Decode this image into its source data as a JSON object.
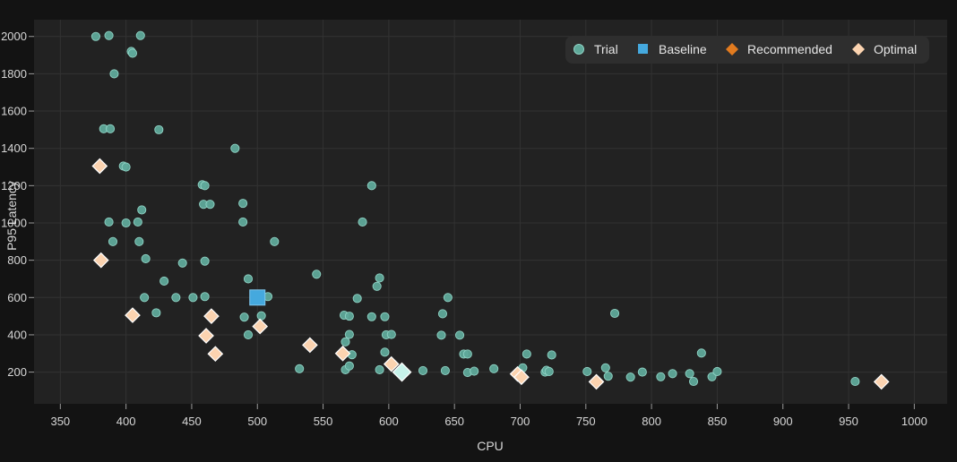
{
  "chart_data": {
    "type": "scatter",
    "title": "",
    "xlabel": "CPU",
    "ylabel": "P95 Latency",
    "xlim": [
      330,
      1025
    ],
    "ylim": [
      30,
      2090
    ],
    "xticks": [
      350,
      400,
      450,
      500,
      550,
      600,
      650,
      700,
      750,
      800,
      850,
      900,
      950,
      1000
    ],
    "yticks": [
      200,
      400,
      600,
      800,
      1000,
      1200,
      1400,
      1600,
      1800,
      2000
    ],
    "grid": true,
    "legend_position": "top-right",
    "colors": {
      "Trial": "#5fa99a",
      "Baseline": "#45a9de",
      "Recommended": "#e27b1f",
      "Optimal": "#fbd3b0",
      "Selected": "#c6f2ea"
    },
    "series": [
      {
        "name": "Trial",
        "marker": "circle",
        "points": [
          [
            377,
            2000
          ],
          [
            387,
            2005
          ],
          [
            411,
            2005
          ],
          [
            404,
            1920
          ],
          [
            405,
            1910
          ],
          [
            391,
            1800
          ],
          [
            383,
            1505
          ],
          [
            388,
            1505
          ],
          [
            425,
            1500
          ],
          [
            398,
            1305
          ],
          [
            400,
            1300
          ],
          [
            483,
            1400
          ],
          [
            587,
            1200
          ],
          [
            458,
            1205
          ],
          [
            460,
            1200
          ],
          [
            489,
            1105
          ],
          [
            459,
            1100
          ],
          [
            464,
            1100
          ],
          [
            412,
            1070
          ],
          [
            387,
            1005
          ],
          [
            400,
            1000
          ],
          [
            409,
            1005
          ],
          [
            489,
            1005
          ],
          [
            580,
            1005
          ],
          [
            390,
            900
          ],
          [
            410,
            900
          ],
          [
            513,
            900
          ],
          [
            415,
            808
          ],
          [
            443,
            785
          ],
          [
            460,
            795
          ],
          [
            545,
            725
          ],
          [
            593,
            705
          ],
          [
            429,
            688
          ],
          [
            493,
            700
          ],
          [
            591,
            660
          ],
          [
            414,
            600
          ],
          [
            438,
            600
          ],
          [
            451,
            600
          ],
          [
            460,
            605
          ],
          [
            508,
            605
          ],
          [
            576,
            595
          ],
          [
            645,
            600
          ],
          [
            423,
            518
          ],
          [
            490,
            495
          ],
          [
            503,
            502
          ],
          [
            566,
            505
          ],
          [
            570,
            500
          ],
          [
            587,
            497
          ],
          [
            597,
            497
          ],
          [
            641,
            513
          ],
          [
            772,
            515
          ],
          [
            493,
            400
          ],
          [
            570,
            402
          ],
          [
            598,
            400
          ],
          [
            602,
            402
          ],
          [
            640,
            398
          ],
          [
            654,
            398
          ],
          [
            567,
            362
          ],
          [
            597,
            307
          ],
          [
            572,
            293
          ],
          [
            657,
            297
          ],
          [
            660,
            297
          ],
          [
            705,
            297
          ],
          [
            724,
            292
          ],
          [
            838,
            302
          ],
          [
            532,
            218
          ],
          [
            567,
            213
          ],
          [
            570,
            233
          ],
          [
            593,
            213
          ],
          [
            626,
            208
          ],
          [
            643,
            208
          ],
          [
            660,
            198
          ],
          [
            665,
            205
          ],
          [
            680,
            218
          ],
          [
            702,
            223
          ],
          [
            719,
            200
          ],
          [
            720,
            210
          ],
          [
            722,
            203
          ],
          [
            751,
            203
          ],
          [
            765,
            223
          ],
          [
            767,
            178
          ],
          [
            784,
            173
          ],
          [
            793,
            200
          ],
          [
            807,
            175
          ],
          [
            816,
            192
          ],
          [
            829,
            192
          ],
          [
            832,
            150
          ],
          [
            846,
            175
          ],
          [
            850,
            203
          ],
          [
            955,
            150
          ]
        ]
      },
      {
        "name": "Baseline",
        "marker": "square",
        "points": [
          [
            500,
            600
          ]
        ]
      },
      {
        "name": "Recommended",
        "marker": "diamond",
        "points": []
      },
      {
        "name": "Optimal",
        "marker": "diamond",
        "points": [
          [
            380,
            1305
          ],
          [
            381,
            800
          ],
          [
            405,
            505
          ],
          [
            461,
            395
          ],
          [
            465,
            500
          ],
          [
            468,
            298
          ],
          [
            502,
            445
          ],
          [
            540,
            345
          ],
          [
            565,
            300
          ],
          [
            602,
            243
          ],
          [
            698,
            190
          ],
          [
            701,
            173
          ],
          [
            758,
            148
          ],
          [
            975,
            148
          ]
        ]
      }
    ],
    "selected_point": [
      610,
      200
    ],
    "legend": [
      "Trial",
      "Baseline",
      "Recommended",
      "Optimal"
    ]
  }
}
